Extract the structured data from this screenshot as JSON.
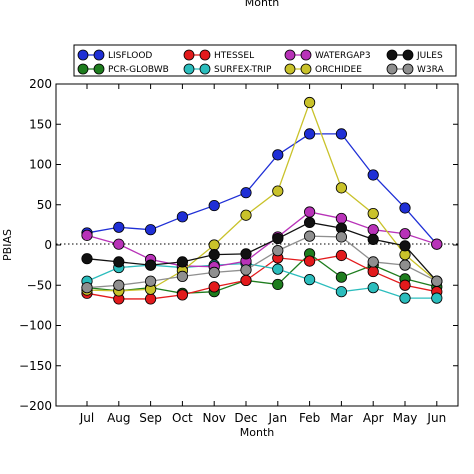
{
  "top_cut_label": "Month",
  "chart_data": {
    "type": "line",
    "xlabel": "Month",
    "ylabel": "PBIAS",
    "categories": [
      "Jul",
      "Aug",
      "Sep",
      "Oct",
      "Nov",
      "Dec",
      "Jan",
      "Feb",
      "Mar",
      "Apr",
      "May",
      "Jun"
    ],
    "ylim": [
      -200,
      200
    ],
    "yticks": [
      -200,
      -150,
      -100,
      -50,
      0,
      50,
      100,
      150,
      200
    ],
    "ytick_labels": [
      "−200",
      "−150",
      "−100",
      "−50",
      "0",
      "50",
      "100",
      "150",
      "200"
    ],
    "zero_line": "dotted",
    "grid": false,
    "legend_position": "top",
    "series": [
      {
        "name": "LISFLOOD",
        "color": "#1f2fd6",
        "values": [
          15,
          22,
          19,
          35,
          49,
          65,
          112,
          138,
          138,
          87,
          46,
          1
        ]
      },
      {
        "name": "PCR-GLOBWB",
        "color": "#1e7d1e",
        "values": [
          -53,
          -57,
          -53,
          -60,
          -58,
          -44,
          -49,
          -11,
          -40,
          -25,
          -42,
          -52
        ]
      },
      {
        "name": "HTESSEL",
        "color": "#e31a1c",
        "values": [
          -60,
          -67,
          -67,
          -62,
          -52,
          -44,
          -16,
          -20,
          -13,
          -33,
          -50,
          -58
        ]
      },
      {
        "name": "SURFEX-TRIP",
        "color": "#2bbdbd",
        "values": [
          -45,
          -28,
          -25,
          -28,
          -25,
          -23,
          -30,
          -43,
          -58,
          -53,
          -66,
          -66
        ]
      },
      {
        "name": "WATERGAP3",
        "color": "#b832b8",
        "values": [
          12,
          1,
          -18,
          -26,
          -27,
          -20,
          10,
          41,
          33,
          19,
          14,
          1
        ]
      },
      {
        "name": "ORCHIDEE",
        "color": "#c9c22a",
        "values": [
          -56,
          -57,
          -55,
          -32,
          0,
          37,
          67,
          177,
          71,
          39,
          -12,
          -45
        ]
      },
      {
        "name": "JULES",
        "color": "#111111",
        "values": [
          -17,
          -21,
          -25,
          -21,
          -12,
          -11,
          8,
          28,
          21,
          7,
          -1,
          -45
        ]
      },
      {
        "name": "W3RA",
        "color": "#8f8f8f",
        "values": [
          -53,
          -50,
          -45,
          -39,
          -34,
          -31,
          -7,
          11,
          10,
          -21,
          -25,
          -45
        ]
      }
    ]
  }
}
